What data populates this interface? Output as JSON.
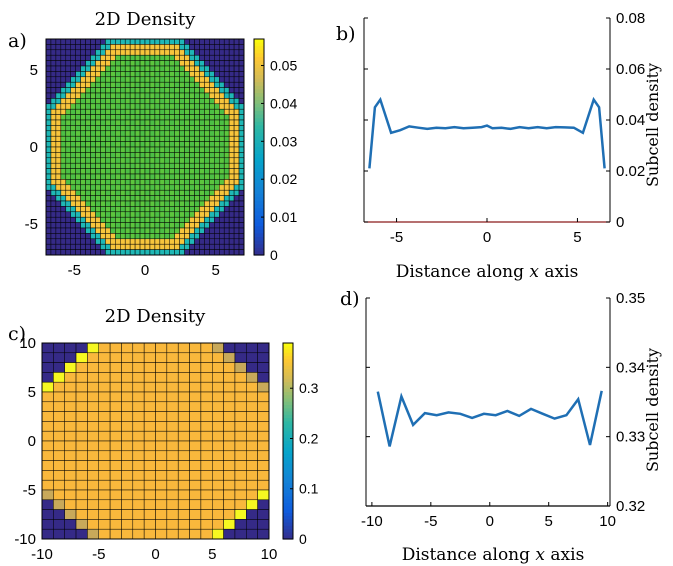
{
  "panels": {
    "a": {
      "label": "a)"
    },
    "b": {
      "label": "b)"
    },
    "c": {
      "label": "c)"
    },
    "d": {
      "label": "d)"
    }
  },
  "chart_data": [
    {
      "id": "a",
      "type": "heatmap",
      "title": "2D Density",
      "grid_size": 40,
      "x_ticks": [
        "-5",
        "0",
        "5"
      ],
      "y_ticks": [
        "5",
        "0",
        "-5"
      ],
      "tick_values": [
        -5,
        0,
        5
      ],
      "extent": [
        -7,
        7
      ],
      "colorbar_ticks": [
        "0.05",
        "0.04",
        "0.03",
        "0.02",
        "0.01",
        "0"
      ],
      "colorbar_values": [
        0.05,
        0.04,
        0.03,
        0.02,
        0.01,
        0
      ],
      "clim": [
        0,
        0.057
      ],
      "shape": "octagon",
      "inner_value": 0.04,
      "ring_value": 0.053,
      "edge_value": 0.026,
      "outside_value": 0.0,
      "colors": {
        "outside": "#352a87",
        "edge": "#1fb8b6",
        "ring": "#f7c53c",
        "inner": "#4cbf45",
        "inner_alt": "#5cc63d",
        "gridline": "#000000"
      }
    },
    {
      "id": "b",
      "type": "line",
      "xlabel_prefix": "Distance along ",
      "xlabel_var": "x",
      "xlabel_suffix": " axis",
      "ylabel": "Subcell density",
      "x_ticks": [
        "-5",
        "0",
        "5"
      ],
      "x_tick_values": [
        -5,
        0,
        5
      ],
      "xlim": [
        -6.8,
        6.8
      ],
      "y_ticks": [
        "0.08",
        "0.06",
        "0.04",
        "0.02",
        "0"
      ],
      "y_tick_values": [
        0.08,
        0.06,
        0.04,
        0.02,
        0
      ],
      "ylim": [
        0,
        0.08
      ],
      "series": [
        {
          "color": "#1f6fb4",
          "x": [
            -6.5,
            -6.2,
            -5.9,
            -5.3,
            -4.8,
            -4.3,
            -3.8,
            -3.3,
            -2.8,
            -2.3,
            -1.8,
            -1.3,
            -0.8,
            -0.3,
            0,
            0.3,
            0.8,
            1.3,
            1.8,
            2.3,
            2.8,
            3.3,
            3.8,
            4.3,
            4.8,
            5.3,
            5.9,
            6.2,
            6.5
          ],
          "y": [
            0.021,
            0.045,
            0.048,
            0.035,
            0.036,
            0.0375,
            0.037,
            0.0365,
            0.037,
            0.0368,
            0.0372,
            0.0368,
            0.037,
            0.0372,
            0.0378,
            0.0368,
            0.037,
            0.0365,
            0.0372,
            0.0368,
            0.0372,
            0.0368,
            0.0372,
            0.0371,
            0.037,
            0.035,
            0.048,
            0.045,
            0.021
          ]
        }
      ],
      "baseline_color": "#8b1a1a"
    },
    {
      "id": "c",
      "type": "heatmap",
      "title": "2D Density",
      "grid_size": 20,
      "x_ticks": [
        "-10",
        "-5",
        "0",
        "5",
        "10"
      ],
      "x_tick_values": [
        -10,
        -5,
        0,
        5,
        10
      ],
      "y_ticks": [
        "10",
        "5",
        "0",
        "-5",
        "-10"
      ],
      "y_tick_values": [
        10,
        5,
        0,
        -5,
        -10
      ],
      "extent": [
        -10,
        10
      ],
      "colorbar_ticks": [
        "0.3",
        "0.2",
        "0.1",
        "0"
      ],
      "colorbar_values": [
        0.3,
        0.2,
        0.1,
        0
      ],
      "clim": [
        0,
        0.39
      ],
      "shape": "octagon",
      "inner_value": 0.333,
      "edge_value": 0.37,
      "outside_value": 0.0,
      "colors": {
        "outside": "#352a87",
        "inner": "#f9b83c",
        "edge_bright": "#f6f821",
        "edge_dim": "#c8a95a",
        "gridline": "#000000"
      }
    },
    {
      "id": "d",
      "type": "line",
      "xlabel_prefix": "Distance along ",
      "xlabel_var": "x",
      "xlabel_suffix": " axis",
      "ylabel": "Subcell density",
      "x_ticks": [
        "-10",
        "-5",
        "0",
        "5",
        "10"
      ],
      "x_tick_values": [
        -10,
        -5,
        0,
        5,
        10
      ],
      "xlim": [
        -10.5,
        10.2
      ],
      "y_ticks": [
        "0.35",
        "0.34",
        "0.33",
        "0.32"
      ],
      "y_tick_values": [
        0.35,
        0.34,
        0.33,
        0.32
      ],
      "ylim": [
        0.32,
        0.35
      ],
      "series": [
        {
          "color": "#1f6fb4",
          "x": [
            -9.5,
            -8.5,
            -7.5,
            -6.5,
            -5.5,
            -4.5,
            -3.5,
            -2.5,
            -1.5,
            -0.5,
            0.5,
            1.5,
            2.5,
            3.5,
            4.5,
            5.5,
            6.5,
            7.5,
            8.5,
            9.5
          ],
          "y": [
            0.3365,
            0.3286,
            0.3358,
            0.3317,
            0.3334,
            0.3331,
            0.3335,
            0.3333,
            0.3327,
            0.3333,
            0.3331,
            0.3337,
            0.333,
            0.334,
            0.3333,
            0.3326,
            0.3331,
            0.3354,
            0.3288,
            0.3366
          ]
        }
      ]
    }
  ]
}
